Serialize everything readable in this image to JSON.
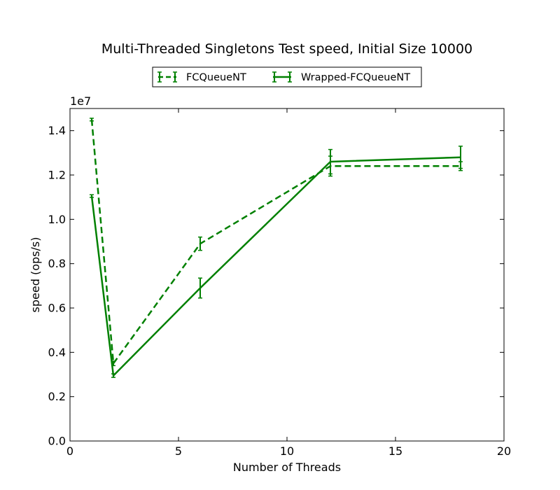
{
  "chart_data": {
    "type": "line",
    "title": "Multi-Threaded Singletons Test speed, Initial Size 10000",
    "xlabel": "Number of Threads",
    "ylabel": "speed (ops/s)",
    "y_offset_label": "1e7",
    "xlim": [
      0,
      20
    ],
    "ylim": [
      0,
      15000000
    ],
    "x_ticks": [
      0,
      5,
      10,
      15,
      20
    ],
    "x_tick_labels": [
      "0",
      "5",
      "10",
      "15",
      "20"
    ],
    "y_ticks": [
      0,
      2000000,
      4000000,
      6000000,
      8000000,
      10000000,
      12000000,
      14000000
    ],
    "y_tick_labels": [
      "0.0",
      "0.2",
      "0.4",
      "0.6",
      "0.8",
      "1.0",
      "1.2",
      "1.4"
    ],
    "grid": false,
    "legend_position": "top-center, above plot",
    "series": [
      {
        "name": "FCQueueNT",
        "style": "dashed",
        "color": "#008000",
        "x": [
          1,
          2,
          6,
          12,
          18
        ],
        "y": [
          14500000,
          3500000,
          8900000,
          12400000,
          12400000
        ],
        "err": [
          60000,
          100000,
          300000,
          450000,
          200000
        ]
      },
      {
        "name": "Wrapped-FCQueueNT",
        "style": "solid",
        "color": "#008000",
        "x": [
          1,
          2,
          6,
          12,
          18
        ],
        "y": [
          11050000,
          2950000,
          6900000,
          12600000,
          12800000
        ],
        "err": [
          60000,
          80000,
          450000,
          550000,
          500000
        ]
      }
    ]
  }
}
